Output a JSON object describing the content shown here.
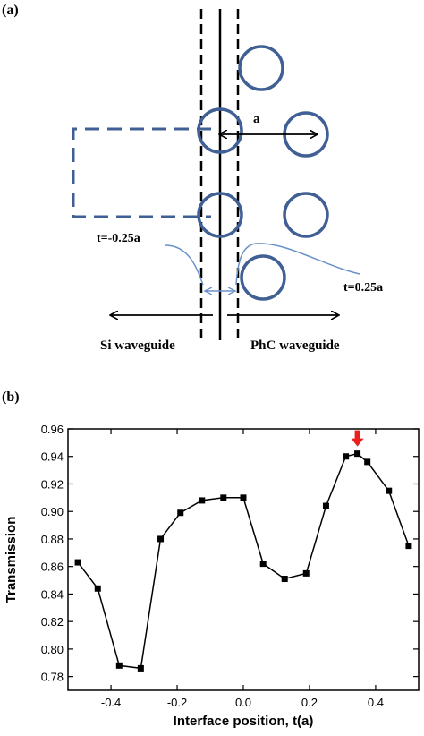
{
  "panel_a": {
    "label": "(a)",
    "period_label": "a",
    "t_left_label": "t=-0.25a",
    "t_right_label": "t=0.25a",
    "left_waveguide_label": "Si waveguide",
    "right_waveguide_label": "PhC waveguide",
    "colors": {
      "hole": "#3f5f95",
      "pointer": "#6a92c8"
    }
  },
  "panel_b": {
    "label": "(b)",
    "marker_color": "#e8201e"
  },
  "chart_data": {
    "type": "line",
    "title": "",
    "xlabel": "Interface position, t(a)",
    "ylabel": "Transmission",
    "xlim": [
      -0.53,
      0.53
    ],
    "ylim": [
      0.77,
      0.96
    ],
    "x_ticks": [
      -0.4,
      -0.2,
      0.0,
      0.2,
      0.4
    ],
    "x_tick_labels": [
      "-0.4",
      "-0.2",
      "0.0",
      "0.2",
      "0.4"
    ],
    "y_ticks": [
      0.78,
      0.8,
      0.82,
      0.84,
      0.86,
      0.88,
      0.9,
      0.92,
      0.94,
      0.96
    ],
    "y_tick_labels": [
      "0.78",
      "0.80",
      "0.82",
      "0.84",
      "0.86",
      "0.88",
      "0.90",
      "0.92",
      "0.94",
      "0.96"
    ],
    "grid": false,
    "legend": "none",
    "series": [
      {
        "x": [
          -0.5,
          -0.44,
          -0.375,
          -0.31,
          -0.25,
          -0.19,
          -0.125,
          -0.06,
          0.0,
          0.06,
          0.125,
          0.19,
          0.25,
          0.31,
          0.345,
          0.375,
          0.44,
          0.5
        ],
        "y": [
          0.863,
          0.844,
          0.788,
          0.786,
          0.88,
          0.899,
          0.908,
          0.91,
          0.91,
          0.862,
          0.851,
          0.855,
          0.904,
          0.94,
          0.942,
          0.936,
          0.915,
          0.875
        ],
        "color": "#000000",
        "marker": "square"
      }
    ],
    "annotations": [
      {
        "type": "arrow-down",
        "x": 0.345,
        "y": 0.942,
        "color": "#e8201e"
      }
    ]
  }
}
